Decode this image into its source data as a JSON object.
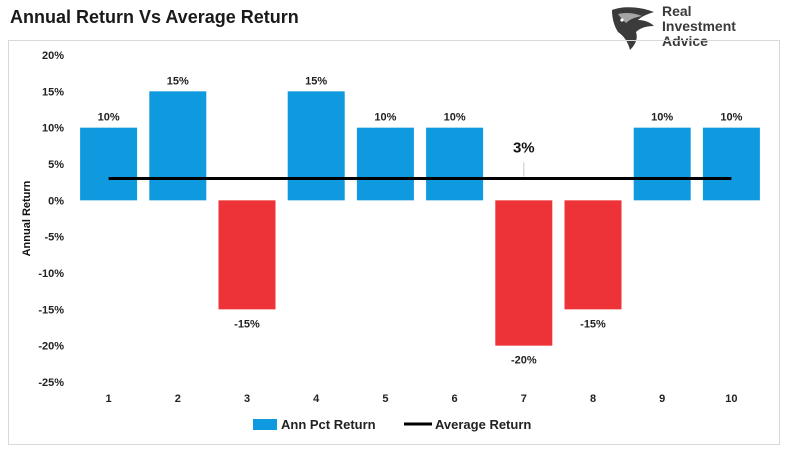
{
  "title": "Annual Return Vs Average Return",
  "logo": {
    "name": "Real Investment Advice",
    "line1": "Real",
    "line2": "Investment",
    "line3": "Advice",
    "icon": "eagle-icon"
  },
  "colors": {
    "positive": "#0f9ae0",
    "negative": "#ee3338",
    "average_line": "#000000",
    "gridline": "#d9d9d9"
  },
  "chart_data": {
    "type": "bar",
    "title": "Annual Return Vs Average Return",
    "xlabel": "",
    "ylabel": "Annual Return",
    "categories": [
      "1",
      "2",
      "3",
      "4",
      "5",
      "6",
      "7",
      "8",
      "9",
      "10"
    ],
    "series": [
      {
        "name": "Ann Pct Return",
        "type": "bar",
        "values": [
          10,
          15,
          -15,
          15,
          10,
          10,
          -20,
          -15,
          10,
          10
        ],
        "data_labels": [
          "10%",
          "15%",
          "-15%",
          "15%",
          "10%",
          "10%",
          "-20%",
          "-15%",
          "10%",
          "10%"
        ]
      },
      {
        "name": "Average Return",
        "type": "line",
        "values": [
          3,
          3,
          3,
          3,
          3,
          3,
          3,
          3,
          3,
          3
        ],
        "annotation": "3%"
      }
    ],
    "ylim": [
      -25,
      20
    ],
    "yticks": [
      20,
      15,
      10,
      5,
      0,
      -5,
      -10,
      -15,
      -20,
      -25
    ],
    "ytick_labels": [
      "20%",
      "15%",
      "10%",
      "5%",
      "0%",
      "-5%",
      "-10%",
      "-15%",
      "-20%",
      "-25%"
    ],
    "grid": false,
    "legend": {
      "position": "bottom",
      "entries": [
        "Ann Pct Return",
        "Average Return"
      ]
    }
  }
}
